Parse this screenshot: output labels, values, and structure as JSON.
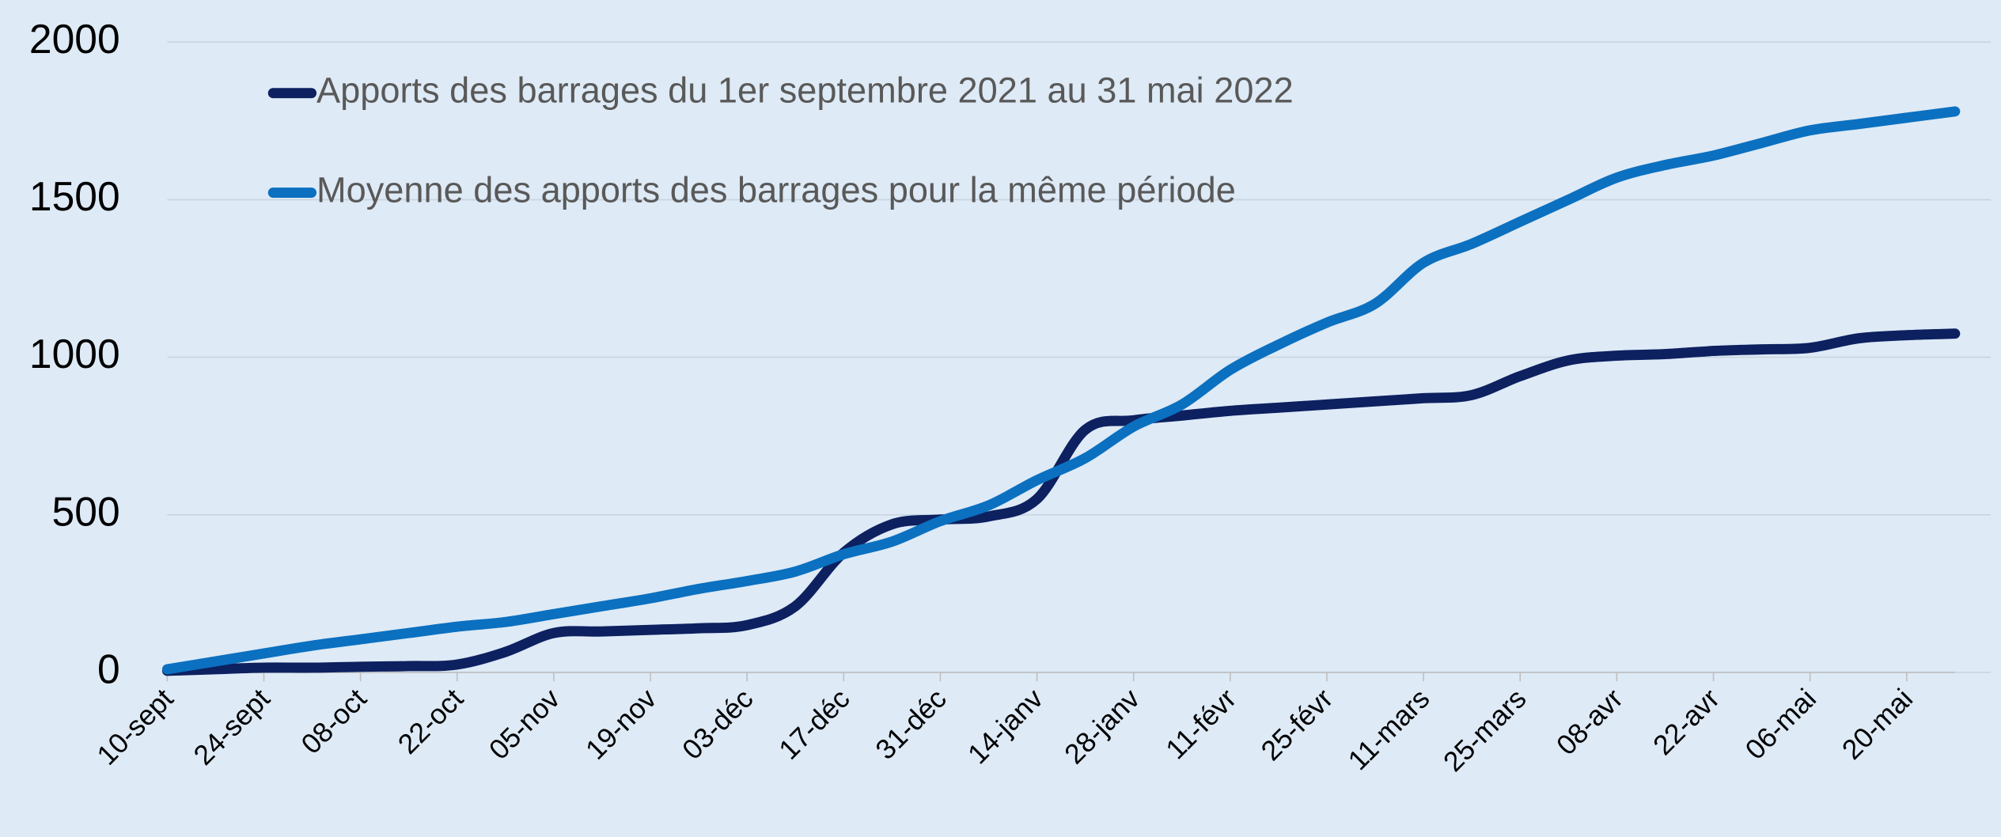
{
  "chart_data": {
    "type": "line",
    "categories": [
      "10-sept",
      null,
      "24-sept",
      null,
      "08-oct",
      null,
      "22-oct",
      null,
      "05-nov",
      null,
      "19-nov",
      null,
      "03-déc",
      null,
      "17-déc",
      null,
      "31-déc",
      null,
      "14-janv",
      null,
      "28-janv",
      null,
      "11-févr",
      null,
      "25-févr",
      null,
      "11-mars",
      null,
      "25-mars",
      null,
      "08-avr",
      null,
      "22-avr",
      null,
      "06-mai",
      null,
      "20-mai",
      null
    ],
    "series": [
      {
        "name": "Apports des barrages du 1er septembre 2021 au 31 mai 2022",
        "color": "#0d2160",
        "values": [
          5,
          10,
          15,
          15,
          18,
          20,
          25,
          65,
          125,
          130,
          135,
          140,
          150,
          210,
          380,
          470,
          485,
          495,
          550,
          770,
          800,
          815,
          830,
          840,
          850,
          860,
          870,
          880,
          940,
          990,
          1005,
          1010,
          1020,
          1025,
          1030,
          1060,
          1070,
          1075
        ]
      },
      {
        "name": "Moyenne des apports des barrages pour la même période",
        "color": "#0b70c0",
        "values": [
          10,
          35,
          60,
          85,
          105,
          125,
          145,
          160,
          185,
          210,
          235,
          265,
          290,
          320,
          375,
          415,
          480,
          530,
          610,
          680,
          780,
          850,
          960,
          1040,
          1110,
          1170,
          1300,
          1360,
          1430,
          1500,
          1570,
          1610,
          1640,
          1680,
          1720,
          1740,
          1760,
          1780
        ]
      }
    ],
    "ylim": [
      0,
      2000
    ],
    "yticks": [
      0,
      500,
      1000,
      1500,
      2000
    ],
    "grid": true,
    "legend": "upper left"
  }
}
